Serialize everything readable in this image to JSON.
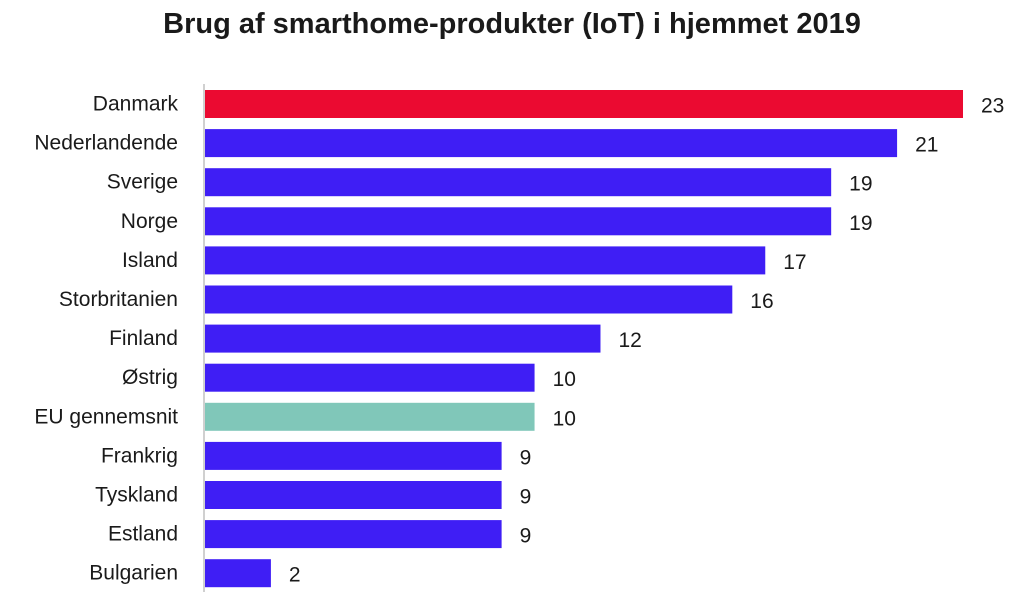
{
  "chart_data": {
    "type": "bar",
    "orientation": "horizontal",
    "title": "Brug af smarthome-produkter (IoT) i hjemmet 2019",
    "xlabel": "",
    "ylabel": "",
    "xlim": [
      0,
      23
    ],
    "grid": false,
    "legend": "none",
    "data_labels": true,
    "categories": [
      "Danmark",
      "Nederlandende",
      "Sverige",
      "Norge",
      "Island",
      "Storbritanien",
      "Finland",
      "Østrig",
      "EU gennemsnit",
      "Frankrig",
      "Tyskland",
      "Estland",
      "Bulgarien"
    ],
    "values": [
      23,
      21,
      19,
      19,
      17,
      16,
      12,
      10,
      10,
      9,
      9,
      9,
      2
    ],
    "colors": {
      "default": "#3f1ef5",
      "Danmark": "#eb0a31",
      "EU gennemsnit": "#80c7b9",
      "axis": "#d0d0d0"
    }
  }
}
